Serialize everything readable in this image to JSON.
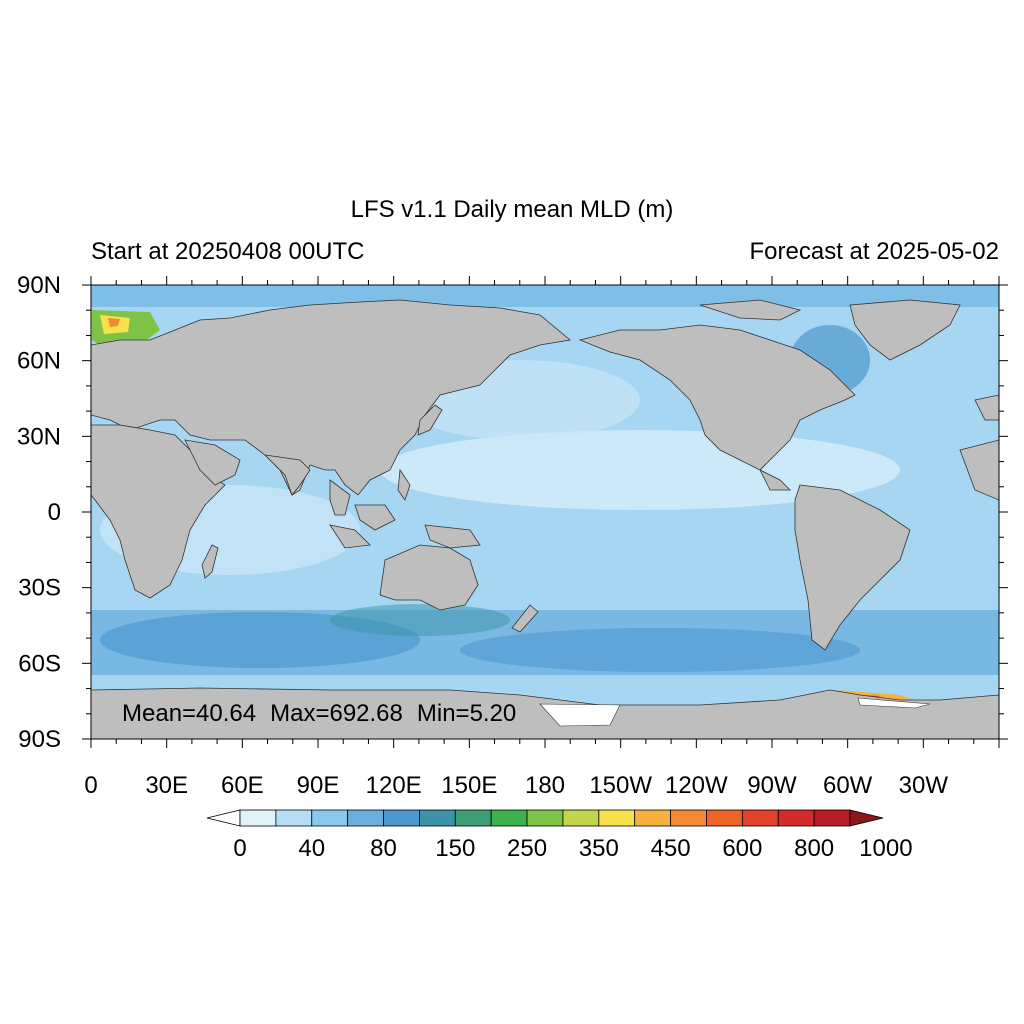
{
  "title": "LFS v1.1 Daily mean MLD (m)",
  "subtitle_left": "Start at 20250408 00UTC",
  "subtitle_right": "Forecast at 2025-05-02",
  "stats": {
    "mean": "Mean=40.64",
    "max": "Max=692.68",
    "min": "Min=5.20"
  },
  "map": {
    "projection": "cylindrical equidistant",
    "lon_range": [
      0,
      360
    ],
    "lat_range": [
      -90,
      90
    ],
    "lat_ticks": [
      {
        "value": 90,
        "label": "90N"
      },
      {
        "value": 60,
        "label": "60N"
      },
      {
        "value": 30,
        "label": "30N"
      },
      {
        "value": 0,
        "label": "0"
      },
      {
        "value": -30,
        "label": "30S"
      },
      {
        "value": -60,
        "label": "60S"
      },
      {
        "value": -90,
        "label": "90S"
      }
    ],
    "lon_ticks": [
      {
        "value": 0,
        "label": "0"
      },
      {
        "value": 30,
        "label": "30E"
      },
      {
        "value": 60,
        "label": "60E"
      },
      {
        "value": 90,
        "label": "90E"
      },
      {
        "value": 120,
        "label": "120E"
      },
      {
        "value": 150,
        "label": "150E"
      },
      {
        "value": 180,
        "label": "180"
      },
      {
        "value": 210,
        "label": "150W"
      },
      {
        "value": 240,
        "label": "120W"
      },
      {
        "value": 270,
        "label": "90W"
      },
      {
        "value": 300,
        "label": "60W"
      },
      {
        "value": 330,
        "label": "30W"
      }
    ],
    "land_color": "#bebebe",
    "ocean_base_color": "#a6d6f2"
  },
  "colorbar": {
    "levels_labeled": [
      "0",
      "40",
      "80",
      "150",
      "250",
      "350",
      "450",
      "600",
      "800",
      "1000"
    ],
    "colors": [
      "#ffffff",
      "#e2f2fb",
      "#b5ddf4",
      "#8ac8ee",
      "#6aaedd",
      "#4f98cf",
      "#3b93a6",
      "#3f9d75",
      "#3bb24a",
      "#7ec345",
      "#c2d54c",
      "#f7e24c",
      "#f6b23c",
      "#f38a33",
      "#ec6428",
      "#e2412a",
      "#d42b2a",
      "#b91c24",
      "#8e1518"
    ]
  }
}
